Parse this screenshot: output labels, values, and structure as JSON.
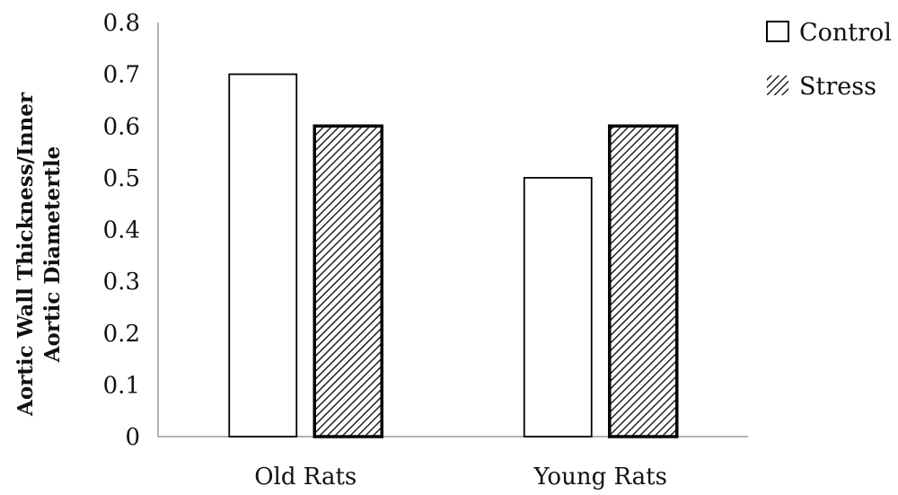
{
  "chart_data": {
    "type": "bar",
    "categories": [
      "Old Rats",
      "Young Rats"
    ],
    "series": [
      {
        "name": "Control",
        "values": [
          0.7,
          0.5
        ],
        "fill": "#ffffff",
        "pattern": "none"
      },
      {
        "name": "Stress",
        "values": [
          0.6,
          0.6
        ],
        "fill": "#ffffff",
        "pattern": "diagonal-hatch"
      }
    ],
    "ylabel_lines": [
      "Aortic Wall Thickness/Inner",
      "Aortic Diametertle"
    ],
    "xlabel": "",
    "ylim": [
      0,
      0.8
    ],
    "yticks": [
      "0",
      "0.1",
      "0.2",
      "0.3",
      "0.4",
      "0.5",
      "0.6",
      "0.7",
      "0.8"
    ],
    "grid": false,
    "legend_position": "top-right"
  }
}
